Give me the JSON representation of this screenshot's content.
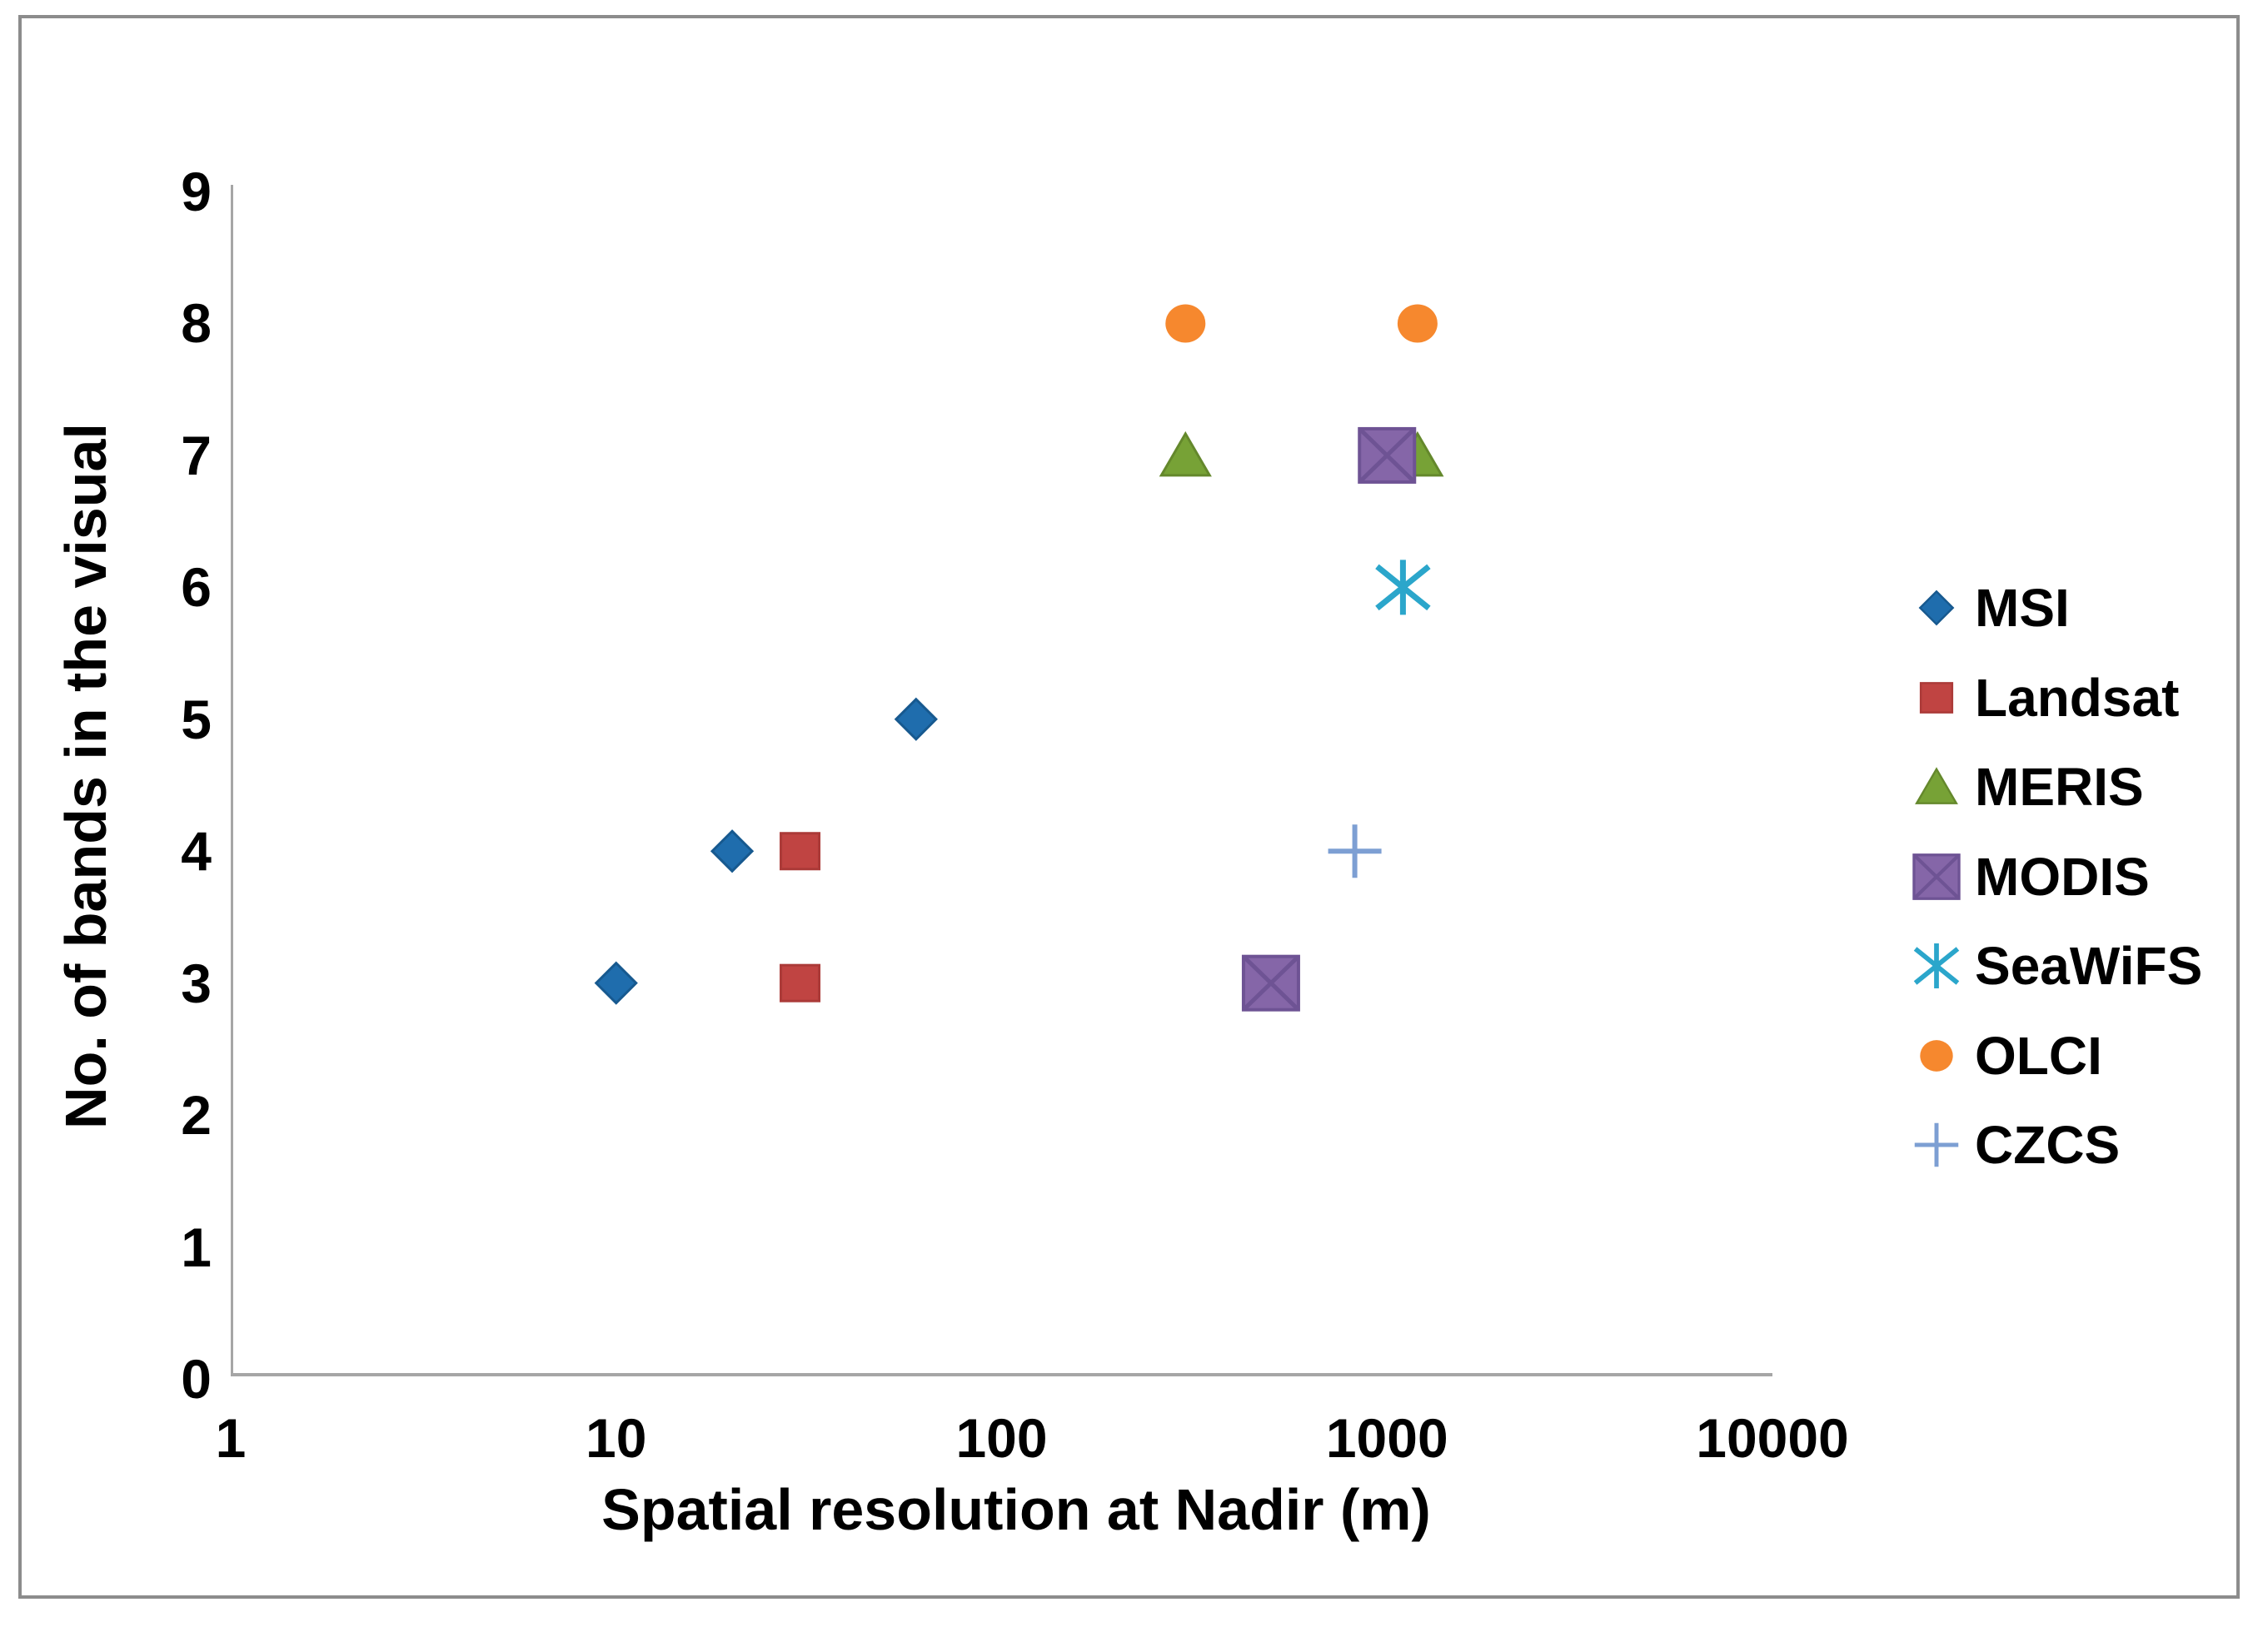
{
  "chart_data": {
    "type": "scatter",
    "title": "",
    "xlabel": "Spatial resolution at Nadir (m)",
    "ylabel": "No. of bands in the visual",
    "x_scale": "log",
    "xlim": [
      1,
      10000
    ],
    "ylim": [
      0,
      9
    ],
    "grid": false,
    "legend_position": "right",
    "x_ticks": [
      "1",
      "10",
      "100",
      "1000",
      "10000"
    ],
    "y_ticks": [
      "0",
      "1",
      "2",
      "3",
      "4",
      "5",
      "6",
      "7",
      "8",
      "9"
    ],
    "series": [
      {
        "name": "MSI",
        "marker": "diamond",
        "color": "#1f6dad",
        "edge": "#17598f",
        "points": [
          [
            10,
            3
          ],
          [
            20,
            4
          ],
          [
            60,
            5
          ]
        ]
      },
      {
        "name": "Landsat",
        "marker": "square",
        "color": "#c04442",
        "edge": "#ab3a38",
        "points": [
          [
            30,
            3
          ],
          [
            30,
            4
          ]
        ]
      },
      {
        "name": "MERIS",
        "marker": "triangle",
        "color": "#77a236",
        "edge": "#64882c",
        "points": [
          [
            300,
            7
          ],
          [
            1200,
            7
          ]
        ]
      },
      {
        "name": "MODIS",
        "marker": "square-x",
        "color": "#8566a8",
        "edge": "#6e5394",
        "points": [
          [
            500,
            3
          ],
          [
            1000,
            7
          ]
        ]
      },
      {
        "name": "SeaWiFS",
        "marker": "asterisk",
        "color": "#2ba6cb",
        "edge": "#2ba6cb",
        "points": [
          [
            1100,
            6
          ]
        ]
      },
      {
        "name": "OLCI",
        "marker": "circle",
        "color": "#f6882e",
        "edge": "#f6882e",
        "points": [
          [
            300,
            8
          ],
          [
            1200,
            8
          ]
        ]
      },
      {
        "name": "CZCS",
        "marker": "plus",
        "color": "#7d9fd3",
        "edge": "#7d9fd3",
        "points": [
          [
            825,
            4
          ]
        ]
      }
    ],
    "axis_color": "#a6a6a6",
    "border_color": "#8c8c8c",
    "text_color": "#000000"
  }
}
